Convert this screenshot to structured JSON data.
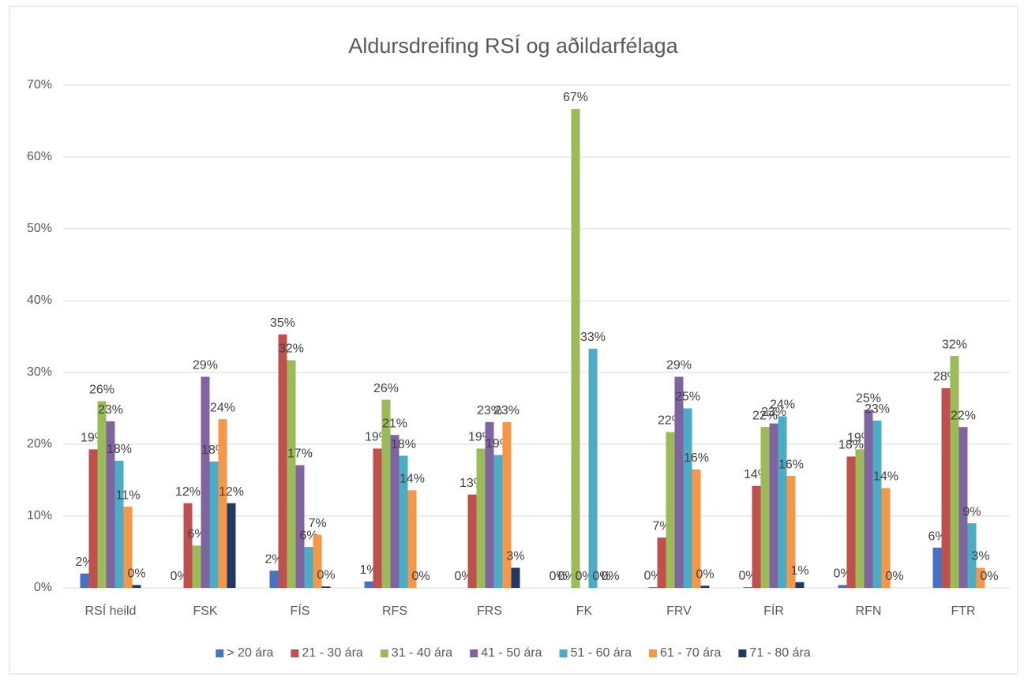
{
  "chart_data": {
    "type": "bar",
    "title": "Aldursdreifing RSÍ og aðildarfélaga",
    "categories": [
      "RSÍ heild",
      "FSK",
      "FÍS",
      "RFS",
      "FRS",
      "FK",
      "FRV",
      "FÍR",
      "RFN",
      "FTR"
    ],
    "series": [
      {
        "name": "> 20 ára",
        "color": "#4472c4",
        "values": [
          2.0,
          0,
          2.4,
          0.9,
          0,
          0,
          0.1,
          0.1,
          0.4,
          5.6
        ],
        "value_labels": [
          "2%",
          "0%",
          "2%",
          "1%",
          "0%",
          "0%",
          "0%",
          "0%",
          "0%",
          "6%"
        ]
      },
      {
        "name": "21 - 30 ára",
        "color": "#c0504d",
        "values": [
          19.3,
          11.8,
          35.3,
          19.4,
          13.0,
          0,
          7.0,
          14.2,
          18.3,
          27.8
        ],
        "value_labels": [
          "19%",
          "12%",
          "35%",
          "19%",
          "13%",
          "0%",
          "7%",
          "14%",
          "18%",
          "28%"
        ]
      },
      {
        "name": "31 - 40 ára",
        "color": "#9bbb59",
        "values": [
          26.0,
          5.9,
          31.7,
          26.2,
          19.4,
          66.7,
          21.7,
          22.4,
          19.3,
          32.3
        ],
        "value_labels": [
          "26%",
          "6%",
          "32%",
          "26%",
          "19%",
          "67%",
          "22%",
          "22%",
          "19%",
          "32%"
        ]
      },
      {
        "name": "41 - 50 ára",
        "color": "#8064a2",
        "values": [
          23.2,
          29.4,
          17.1,
          21.3,
          23.1,
          0,
          29.4,
          22.9,
          24.8,
          22.4
        ],
        "value_labels": [
          "23%",
          "29%",
          "17%",
          "21%",
          "23%",
          "0%",
          "29%",
          "23%",
          "25%",
          "22%"
        ]
      },
      {
        "name": "51 - 60 ára",
        "color": "#4bacc6",
        "values": [
          17.7,
          17.6,
          5.7,
          18.4,
          18.5,
          33.3,
          25.0,
          23.9,
          23.3,
          9.0
        ],
        "value_labels": [
          "18%",
          "18%",
          "6%",
          "18%",
          "19%",
          "33%",
          "25%",
          "24%",
          "23%",
          "9%"
        ]
      },
      {
        "name": "61 - 70 ára",
        "color": "#f79646",
        "values": [
          11.3,
          23.5,
          7.4,
          13.6,
          23.1,
          0,
          16.5,
          15.6,
          13.9,
          2.8
        ],
        "value_labels": [
          "11%",
          "24%",
          "7%",
          "14%",
          "23%",
          "0%",
          "16%",
          "16%",
          "14%",
          "3%"
        ]
      },
      {
        "name": "71 - 80 ára",
        "color": "#203864",
        "values": [
          0.4,
          11.8,
          0.2,
          0,
          2.8,
          0,
          0.3,
          0.8,
          0,
          0
        ],
        "value_labels": [
          "0%",
          "12%",
          "0%",
          "0%",
          "3%",
          "0%",
          "0%",
          "1%",
          "0%",
          "0%"
        ]
      }
    ],
    "ylim": [
      0,
      70
    ],
    "yticks": [
      {
        "value": 0,
        "label": "0%"
      },
      {
        "value": 10,
        "label": "10%"
      },
      {
        "value": 20,
        "label": "20%"
      },
      {
        "value": 30,
        "label": "30%"
      },
      {
        "value": 40,
        "label": "40%"
      },
      {
        "value": 50,
        "label": "50%"
      },
      {
        "value": 60,
        "label": "60%"
      },
      {
        "value": 70,
        "label": "70%"
      }
    ],
    "grid": true,
    "legend": "bottom"
  }
}
